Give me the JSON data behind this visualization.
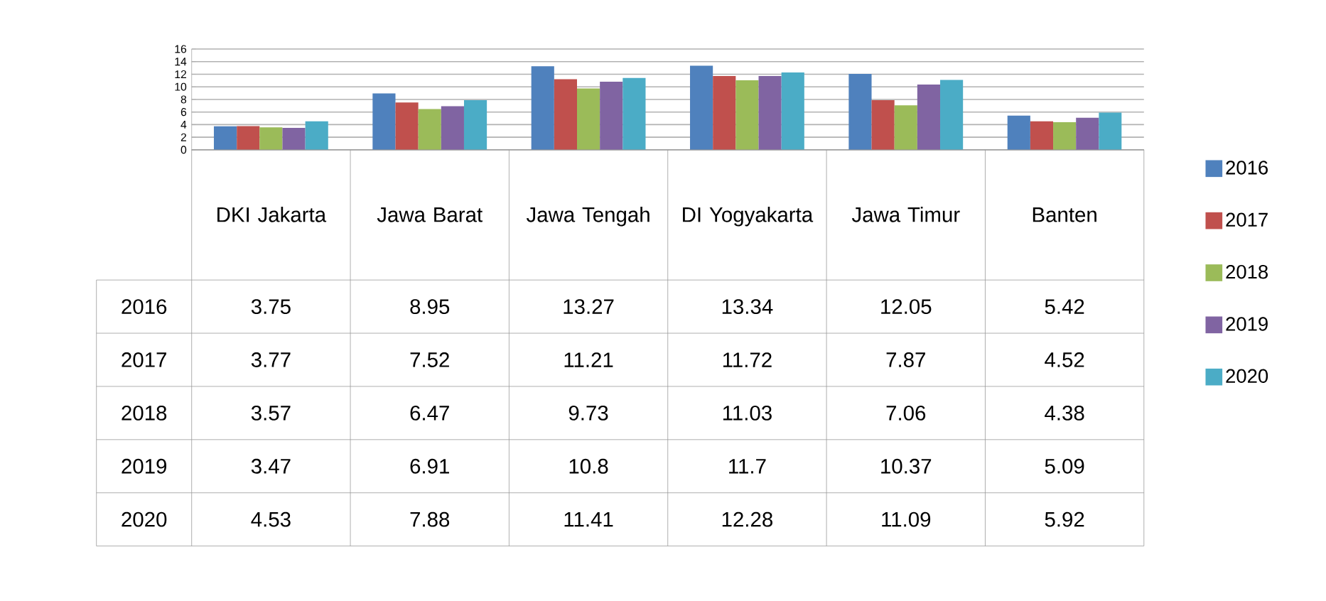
{
  "chart_data": {
    "type": "bar",
    "categories": [
      "DKI Jakarta",
      "Jawa Barat",
      "Jawa Tengah",
      "DI Yogyakarta",
      "Jawa Timur",
      "Banten"
    ],
    "series": [
      {
        "name": "2016",
        "color": "#4f81bd",
        "values": [
          3.75,
          8.95,
          13.27,
          13.34,
          12.05,
          5.42
        ]
      },
      {
        "name": "2017",
        "color": "#c0504d",
        "values": [
          3.77,
          7.52,
          11.21,
          11.72,
          7.87,
          4.52
        ]
      },
      {
        "name": "2018",
        "color": "#9bbb59",
        "values": [
          3.57,
          6.47,
          9.73,
          11.03,
          7.06,
          4.38
        ]
      },
      {
        "name": "2019",
        "color": "#8064a2",
        "values": [
          3.47,
          6.91,
          10.8,
          11.7,
          10.37,
          5.09
        ]
      },
      {
        "name": "2020",
        "color": "#4bacc6",
        "values": [
          4.53,
          7.88,
          11.41,
          12.28,
          11.09,
          5.92
        ]
      }
    ],
    "ylim": [
      0,
      16
    ],
    "yticks": [
      0,
      2,
      4,
      6,
      8,
      10,
      12,
      14,
      16
    ],
    "grid": "y",
    "legend": "right",
    "data_labels": true
  }
}
